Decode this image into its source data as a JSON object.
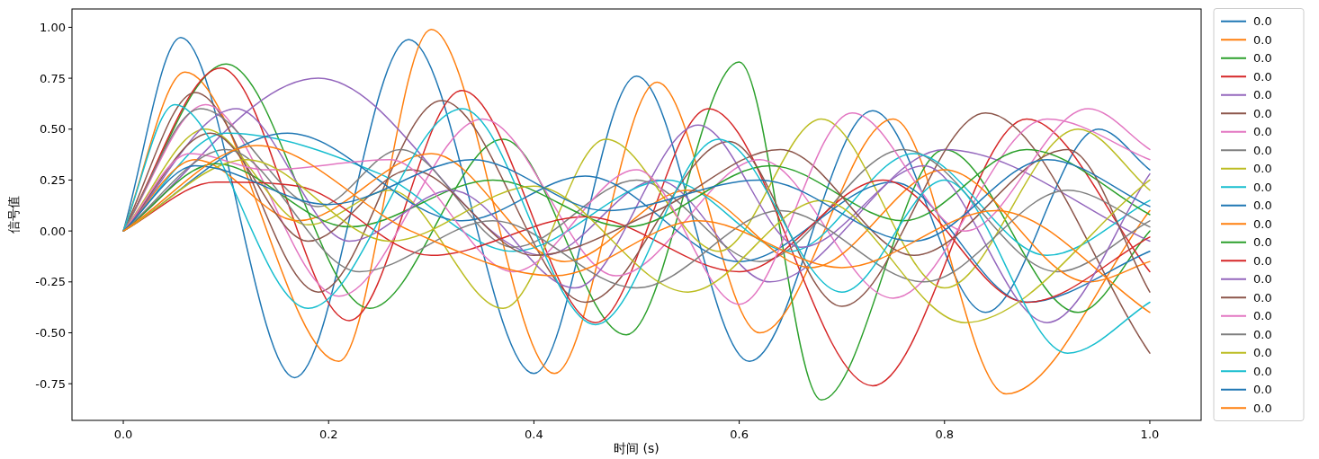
{
  "chart_data": {
    "type": "line",
    "xlabel": "时间 (s)",
    "ylabel": "信号值",
    "xlim": [
      -0.05,
      1.05
    ],
    "ylim": [
      -0.93,
      1.09
    ],
    "xticks": [
      {
        "value": 0,
        "label": "0.0"
      },
      0.2,
      0.4,
      0.6,
      0.8,
      {
        "value": 1,
        "label": "1.0"
      }
    ],
    "yticks": [
      -0.75,
      {
        "value": -0.5,
        "label": "-0.50"
      },
      -0.25,
      {
        "value": 0,
        "label": "0.00"
      },
      0.25,
      {
        "value": 0.5,
        "label": "0.50"
      },
      0.75,
      {
        "value": 1,
        "label": "1.00"
      }
    ],
    "grid": false,
    "legend": "right",
    "series": [
      {
        "name": "0.0",
        "color": "#1f77b4",
        "x": [
          0,
          0.056,
          0.167,
          0.278,
          0.4,
          0.5,
          0.61,
          0.73,
          0.84,
          0.95,
          1.0
        ],
        "values": [
          0,
          0.95,
          -0.72,
          0.94,
          -0.7,
          0.76,
          -0.64,
          0.59,
          -0.4,
          0.5,
          0.3
        ]
      },
      {
        "name": "0.0",
        "color": "#ff7f0e",
        "x": [
          0,
          0.06,
          0.21,
          0.3,
          0.42,
          0.52,
          0.62,
          0.75,
          0.86,
          1.0
        ],
        "values": [
          0,
          0.78,
          -0.64,
          0.99,
          -0.7,
          0.73,
          -0.5,
          0.55,
          -0.8,
          0.1
        ]
      },
      {
        "name": "0.0",
        "color": "#2ca02c",
        "x": [
          0,
          0.1,
          0.24,
          0.37,
          0.49,
          0.6,
          0.68,
          0.8,
          0.93,
          1.0
        ],
        "values": [
          0,
          0.82,
          -0.38,
          0.45,
          -0.51,
          0.83,
          -0.83,
          0.4,
          -0.4,
          0.0
        ]
      },
      {
        "name": "0.0",
        "color": "#d62728",
        "x": [
          0,
          0.095,
          0.22,
          0.33,
          0.46,
          0.57,
          0.73,
          0.88,
          1.0
        ],
        "values": [
          0,
          0.8,
          -0.44,
          0.69,
          -0.45,
          0.6,
          -0.76,
          0.55,
          -0.2
        ]
      },
      {
        "name": "0.0",
        "color": "#9467bd",
        "x": [
          0,
          0.19,
          0.41,
          0.52,
          0.63,
          0.8,
          1.0
        ],
        "values": [
          0,
          0.75,
          -0.12,
          0.25,
          -0.25,
          0.4,
          -0.05
        ]
      },
      {
        "name": "0.0",
        "color": "#8c564b",
        "x": [
          0,
          0.07,
          0.19,
          0.31,
          0.45,
          0.59,
          0.7,
          0.84,
          1.0
        ],
        "values": [
          0,
          0.68,
          -0.3,
          0.64,
          -0.35,
          0.44,
          -0.37,
          0.58,
          -0.6
        ]
      },
      {
        "name": "0.0",
        "color": "#e377c2",
        "x": [
          0,
          0.08,
          0.21,
          0.35,
          0.48,
          0.62,
          0.75,
          0.9,
          1.0
        ],
        "values": [
          0,
          0.62,
          -0.32,
          0.55,
          -0.22,
          0.35,
          -0.33,
          0.55,
          0.35
        ]
      },
      {
        "name": "0.0",
        "color": "#7f7f7f",
        "x": [
          0,
          0.075,
          0.19,
          0.27,
          0.38,
          0.5,
          0.62,
          0.76,
          0.91,
          1.0
        ],
        "values": [
          0,
          0.6,
          0.12,
          0.4,
          -0.08,
          0.25,
          -0.15,
          0.4,
          -0.2,
          0.05
        ]
      },
      {
        "name": "0.0",
        "color": "#bcbd22",
        "x": [
          0,
          0.08,
          0.18,
          0.26,
          0.37,
          0.47,
          0.58,
          0.68,
          0.8,
          0.93,
          1.0
        ],
        "values": [
          0,
          0.5,
          0.03,
          0.2,
          -0.38,
          0.45,
          -0.1,
          0.55,
          -0.28,
          0.5,
          0.2
        ]
      },
      {
        "name": "0.0",
        "color": "#17becf",
        "x": [
          0,
          0.1,
          0.25,
          0.38,
          0.53,
          0.65,
          0.77,
          0.9,
          1.0
        ],
        "values": [
          0,
          0.48,
          0.28,
          -0.1,
          0.25,
          -0.1,
          0.38,
          -0.12,
          0.15
        ]
      },
      {
        "name": "0.0",
        "color": "#1f77b4",
        "x": [
          0,
          0.16,
          0.33,
          0.45,
          0.6,
          0.75,
          0.88,
          1.0
        ],
        "values": [
          0,
          0.48,
          0.05,
          0.27,
          -0.15,
          0.24,
          -0.35,
          -0.1
        ]
      },
      {
        "name": "0.0",
        "color": "#ff7f0e",
        "x": [
          0,
          0.07,
          0.17,
          0.3,
          0.43,
          0.55,
          0.67,
          0.8,
          0.94,
          1.0
        ],
        "values": [
          0,
          0.35,
          0.05,
          0.38,
          -0.15,
          0.2,
          -0.18,
          0.3,
          -0.25,
          -0.15
        ]
      },
      {
        "name": "0.0",
        "color": "#2ca02c",
        "x": [
          0,
          0.09,
          0.22,
          0.36,
          0.49,
          0.63,
          0.76,
          0.88,
          1.0
        ],
        "values": [
          0,
          0.33,
          0.02,
          0.25,
          0.02,
          0.32,
          0.05,
          0.4,
          0.08
        ]
      },
      {
        "name": "0.0",
        "color": "#d62728",
        "x": [
          0,
          0.09,
          0.17,
          0.3,
          0.45,
          0.6,
          0.74,
          0.88,
          1.0
        ],
        "values": [
          0,
          0.24,
          0.22,
          -0.12,
          0.07,
          -0.2,
          0.25,
          -0.35,
          -0.03
        ]
      },
      {
        "name": "0.0",
        "color": "#9467bd",
        "x": [
          0,
          0.11,
          0.22,
          0.32,
          0.44,
          0.56,
          0.66,
          0.78,
          0.9,
          1.0
        ],
        "values": [
          0,
          0.6,
          -0.05,
          0.2,
          -0.28,
          0.52,
          -0.08,
          0.32,
          -0.45,
          0.28
        ]
      },
      {
        "name": "0.0",
        "color": "#8c564b",
        "x": [
          0,
          0.085,
          0.18,
          0.28,
          0.4,
          0.52,
          0.64,
          0.77,
          0.92,
          1.0
        ],
        "values": [
          0,
          0.48,
          -0.05,
          0.3,
          -0.12,
          0.1,
          0.4,
          -0.12,
          0.4,
          -0.3
        ]
      },
      {
        "name": "0.0",
        "color": "#e377c2",
        "x": [
          0,
          0.065,
          0.14,
          0.26,
          0.38,
          0.5,
          0.6,
          0.71,
          0.82,
          0.94,
          1.0
        ],
        "values": [
          0,
          0.38,
          0.3,
          0.35,
          -0.2,
          0.3,
          -0.36,
          0.58,
          0.0,
          0.6,
          0.4
        ]
      },
      {
        "name": "0.0",
        "color": "#7f7f7f",
        "x": [
          0,
          0.1,
          0.23,
          0.36,
          0.5,
          0.64,
          0.78,
          0.92,
          1.0
        ],
        "values": [
          0,
          0.4,
          -0.2,
          0.05,
          -0.28,
          0.1,
          -0.25,
          0.2,
          0.02
        ]
      },
      {
        "name": "0.0",
        "color": "#bcbd22",
        "x": [
          0,
          0.12,
          0.26,
          0.4,
          0.55,
          0.68,
          0.82,
          1.0
        ],
        "values": [
          0,
          0.35,
          -0.05,
          0.22,
          -0.3,
          0.15,
          -0.45,
          0.25
        ]
      },
      {
        "name": "0.0",
        "color": "#17becf",
        "x": [
          0,
          0.05,
          0.18,
          0.33,
          0.46,
          0.58,
          0.7,
          0.8,
          0.92,
          1.0
        ],
        "values": [
          0,
          0.62,
          -0.38,
          0.6,
          -0.46,
          0.45,
          -0.3,
          0.25,
          -0.6,
          -0.35
        ]
      },
      {
        "name": "0.0",
        "color": "#1f77b4",
        "x": [
          0,
          0.07,
          0.2,
          0.34,
          0.47,
          0.62,
          0.77,
          0.9,
          1.0
        ],
        "values": [
          0,
          0.32,
          0.13,
          0.35,
          0.1,
          0.25,
          -0.05,
          0.35,
          0.12
        ]
      },
      {
        "name": "0.0",
        "color": "#ff7f0e",
        "x": [
          0,
          0.13,
          0.28,
          0.42,
          0.56,
          0.7,
          0.85,
          1.0
        ],
        "values": [
          0,
          0.42,
          0.0,
          -0.22,
          0.05,
          -0.18,
          0.1,
          -0.4
        ]
      }
    ]
  }
}
